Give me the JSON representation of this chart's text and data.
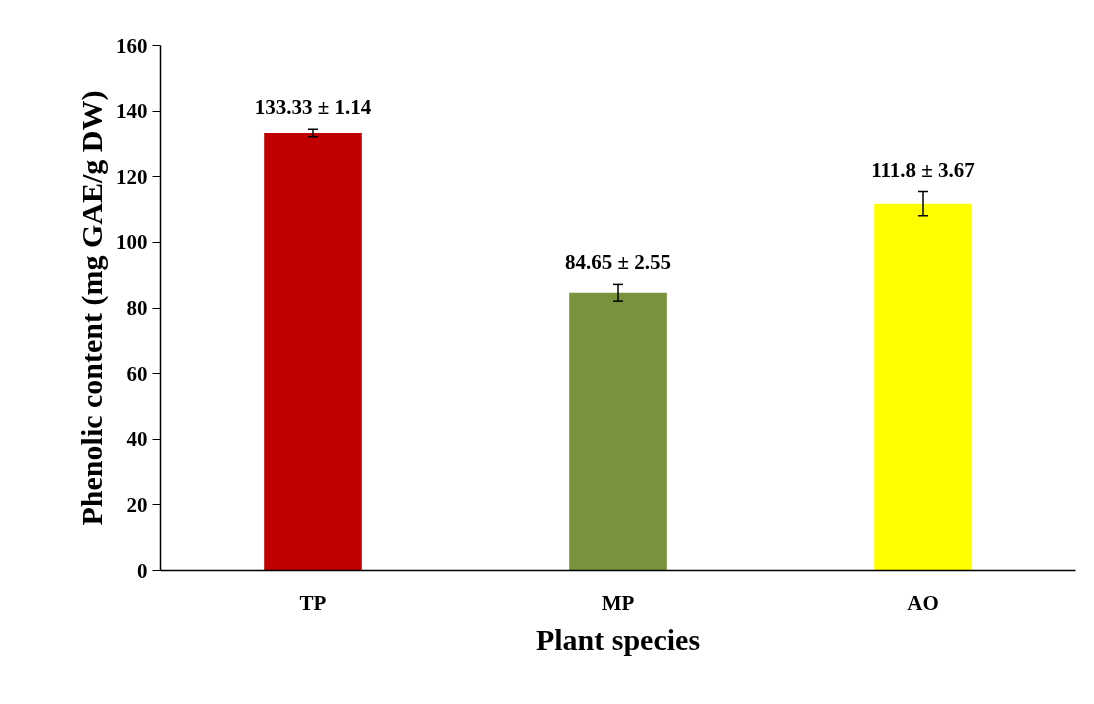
{
  "chart_data": {
    "type": "bar",
    "xlabel": "Plant species",
    "ylabel": "Phenolic content (mg GAE/g DW)",
    "categories": [
      "TP",
      "MP",
      "AO"
    ],
    "values": [
      133.33,
      84.65,
      111.8
    ],
    "errors": [
      1.14,
      2.55,
      3.67
    ],
    "value_labels": [
      "133.33 ± 1.14",
      "84.65 ± 2.55",
      "111.8 ± 3.67"
    ],
    "colors": [
      "#c00000",
      "#77933c",
      "#ffff00"
    ],
    "ylim": [
      0,
      160
    ],
    "yticks": [
      0,
      20,
      40,
      60,
      80,
      100,
      120,
      140,
      160
    ],
    "grid": false
  }
}
